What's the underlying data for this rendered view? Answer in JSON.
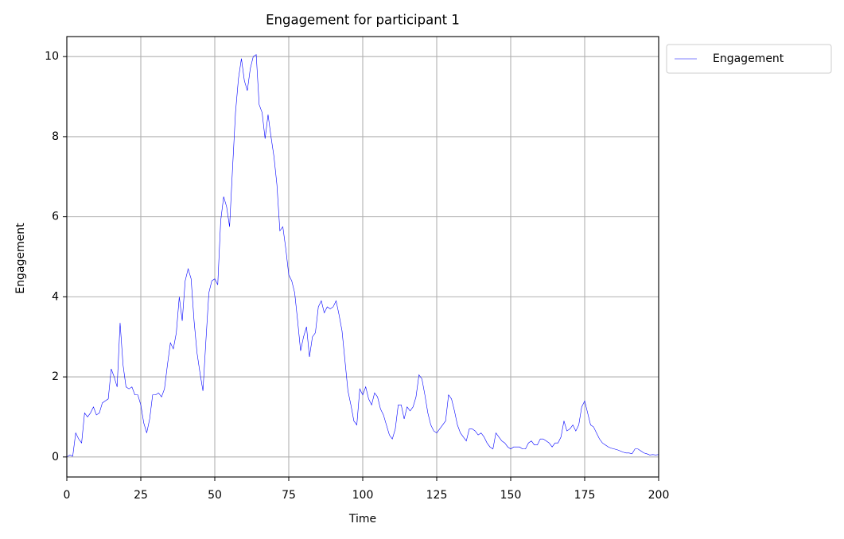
{
  "chart_data": {
    "type": "line",
    "title": "Engagement for participant 1",
    "xlabel": "Time",
    "ylabel": "Engagement",
    "x": [
      0,
      1,
      2,
      3,
      4,
      5,
      6,
      7,
      8,
      9,
      10,
      11,
      12,
      13,
      14,
      15,
      16,
      17,
      18,
      19,
      20,
      21,
      22,
      23,
      24,
      25,
      26,
      27,
      28,
      29,
      30,
      31,
      32,
      33,
      34,
      35,
      36,
      37,
      38,
      39,
      40,
      41,
      42,
      43,
      44,
      45,
      46,
      47,
      48,
      49,
      50,
      51,
      52,
      53,
      54,
      55,
      56,
      57,
      58,
      59,
      60,
      61,
      62,
      63,
      64,
      65,
      66,
      67,
      68,
      69,
      70,
      71,
      72,
      73,
      74,
      75,
      76,
      77,
      78,
      79,
      80,
      81,
      82,
      83,
      84,
      85,
      86,
      87,
      88,
      89,
      90,
      91,
      92,
      93,
      94,
      95,
      96,
      97,
      98,
      99,
      100,
      101,
      102,
      103,
      104,
      105,
      106,
      107,
      108,
      109,
      110,
      111,
      112,
      113,
      114,
      115,
      116,
      117,
      118,
      119,
      120,
      121,
      122,
      123,
      124,
      125,
      126,
      127,
      128,
      129,
      130,
      131,
      132,
      133,
      134,
      135,
      136,
      137,
      138,
      139,
      140,
      141,
      142,
      143,
      144,
      145,
      146,
      147,
      148,
      149,
      150,
      151,
      152,
      153,
      154,
      155,
      156,
      157,
      158,
      159,
      160,
      161,
      162,
      163,
      164,
      165,
      166,
      167,
      168,
      169,
      170,
      171,
      172,
      173,
      174,
      175,
      176,
      177,
      178,
      179,
      180,
      181,
      182,
      183,
      184,
      185,
      186,
      187,
      188,
      189,
      190,
      191,
      192,
      193,
      194,
      195,
      196,
      197,
      198,
      199,
      200
    ],
    "series": [
      {
        "name": "Engagement",
        "color": "#0000ff",
        "values": [
          0.0,
          0.05,
          0.02,
          0.6,
          0.45,
          0.35,
          1.1,
          1.0,
          1.1,
          1.25,
          1.05,
          1.1,
          1.35,
          1.4,
          1.45,
          2.2,
          2.0,
          1.75,
          3.35,
          2.3,
          1.75,
          1.7,
          1.75,
          1.55,
          1.55,
          1.3,
          0.85,
          0.6,
          0.95,
          1.55,
          1.55,
          1.6,
          1.5,
          1.7,
          2.3,
          2.85,
          2.7,
          3.1,
          4.0,
          3.4,
          4.4,
          4.7,
          4.45,
          3.4,
          2.6,
          2.1,
          1.65,
          2.9,
          4.1,
          4.4,
          4.45,
          4.3,
          5.9,
          6.5,
          6.25,
          5.75,
          7.2,
          8.6,
          9.45,
          9.95,
          9.4,
          9.15,
          9.7,
          10.0,
          10.05,
          8.8,
          8.6,
          7.95,
          8.55,
          8.0,
          7.5,
          6.8,
          5.65,
          5.75,
          5.2,
          4.55,
          4.4,
          4.1,
          3.4,
          2.65,
          3.0,
          3.25,
          2.5,
          3.0,
          3.1,
          3.75,
          3.9,
          3.6,
          3.75,
          3.7,
          3.75,
          3.9,
          3.55,
          3.15,
          2.4,
          1.65,
          1.3,
          0.9,
          0.8,
          1.7,
          1.55,
          1.75,
          1.45,
          1.3,
          1.6,
          1.5,
          1.2,
          1.05,
          0.8,
          0.55,
          0.45,
          0.7,
          1.3,
          1.3,
          0.95,
          1.25,
          1.15,
          1.25,
          1.5,
          2.05,
          1.95,
          1.55,
          1.1,
          0.8,
          0.65,
          0.6,
          0.7,
          0.8,
          0.9,
          1.55,
          1.45,
          1.15,
          0.8,
          0.6,
          0.5,
          0.4,
          0.7,
          0.7,
          0.65,
          0.55,
          0.6,
          0.5,
          0.35,
          0.25,
          0.2,
          0.6,
          0.5,
          0.4,
          0.35,
          0.25,
          0.2,
          0.25,
          0.25,
          0.25,
          0.2,
          0.2,
          0.35,
          0.4,
          0.3,
          0.3,
          0.45,
          0.45,
          0.4,
          0.35,
          0.25,
          0.35,
          0.35,
          0.5,
          0.9,
          0.65,
          0.7,
          0.8,
          0.65,
          0.8,
          1.25,
          1.4,
          1.1,
          0.8,
          0.75,
          0.6,
          0.45,
          0.35,
          0.3,
          0.25,
          0.22,
          0.2,
          0.18,
          0.15,
          0.12,
          0.1,
          0.1,
          0.08,
          0.2,
          0.2,
          0.15,
          0.1,
          0.08,
          0.05,
          0.06,
          0.05,
          0.06
        ]
      }
    ],
    "xlim": [
      0,
      200
    ],
    "xticks": [
      0,
      25,
      50,
      75,
      100,
      125,
      150,
      175,
      200
    ],
    "ylim": [
      -0.5,
      10.5
    ],
    "yticks": [
      0,
      2,
      4,
      6,
      8,
      10
    ],
    "grid": true,
    "legend": "outside-upper-right"
  }
}
